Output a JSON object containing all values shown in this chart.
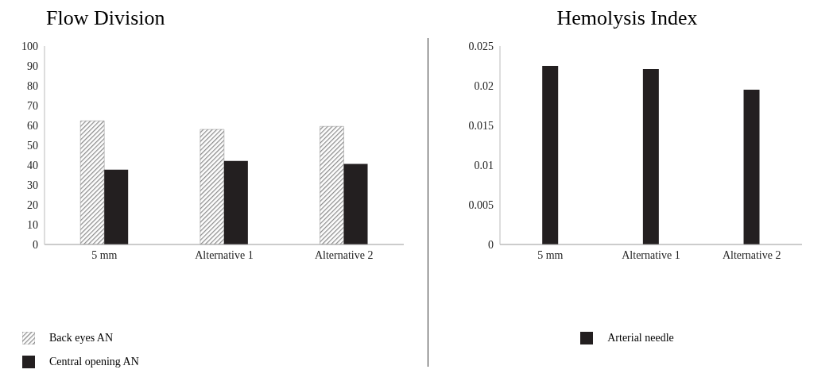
{
  "chart_data": [
    {
      "type": "bar",
      "title": "Flow Division",
      "categories": [
        "5 mm",
        "Alternative 1",
        "Alternative 2"
      ],
      "series": [
        {
          "name": "Back eyes AN",
          "color": "#8c8c8c",
          "values": [
            62.3,
            58.0,
            59.5
          ]
        },
        {
          "name": "Central opening AN",
          "color": "#231f20",
          "values": [
            37.7,
            42.1,
            40.6
          ]
        }
      ],
      "ylim": [
        0,
        100
      ],
      "yticks": [
        0,
        10,
        20,
        30,
        40,
        50,
        60,
        70,
        80,
        90,
        100
      ],
      "grid": false,
      "legend": "bottom left"
    },
    {
      "type": "bar",
      "title": "Hemolysis Index",
      "categories": [
        "5 mm",
        "Alternative 1",
        "Alternative 2"
      ],
      "series": [
        {
          "name": "Arterial needle",
          "color": "#231f20",
          "values": [
            0.0225,
            0.0221,
            0.0195
          ]
        }
      ],
      "ylim": [
        0,
        0.025
      ],
      "yticks": [
        0,
        0.005,
        0.01,
        0.015,
        0.02,
        0.025
      ],
      "grid": false,
      "legend": "bottom"
    }
  ]
}
